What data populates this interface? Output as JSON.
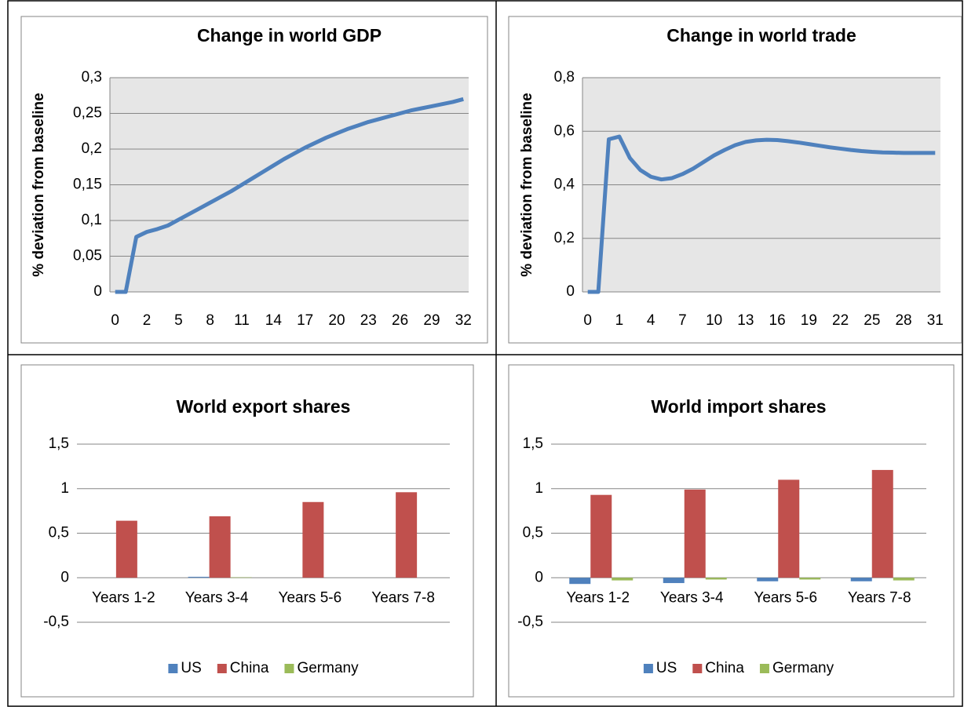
{
  "chart_data": [
    {
      "type": "line",
      "title": "Change in world GDP",
      "y_label": "% deviation from baseline",
      "categories": [
        "0",
        null,
        null,
        "2",
        null,
        null,
        "5",
        null,
        null,
        "8",
        null,
        null,
        "11",
        null,
        null,
        "14",
        null,
        null,
        "17",
        null,
        null,
        "20",
        null,
        null,
        "23",
        null,
        null,
        "26",
        null,
        null,
        "29",
        null,
        null,
        "32"
      ],
      "values": [
        0,
        0,
        0.077,
        0.084,
        0.088,
        0.093,
        0.101,
        0.109,
        0.117,
        0.125,
        0.133,
        0.141,
        0.15,
        0.159,
        0.168,
        0.177,
        0.186,
        0.194,
        0.202,
        0.209,
        0.216,
        0.222,
        0.228,
        0.233,
        0.238,
        0.242,
        0.246,
        0.25,
        0.254,
        0.257,
        0.26,
        0.263,
        0.266,
        0.27
      ],
      "color": "#4f81bd",
      "ylim": [
        0,
        0.3
      ],
      "yticks": [
        0,
        {
          "value": 0.05,
          "label": "0,05"
        },
        {
          "value": 0.1,
          "label": "0,1"
        },
        {
          "value": 0.15,
          "label": "0,15"
        },
        {
          "value": 0.2,
          "label": "0,2"
        },
        {
          "value": 0.25,
          "label": "0,25"
        },
        {
          "value": 0.3,
          "label": "0,3"
        }
      ],
      "grid": true
    },
    {
      "type": "line",
      "title": "Change in world trade",
      "y_label": "% deviation from baseline",
      "categories": [
        "0",
        null,
        null,
        "1",
        null,
        null,
        "4",
        null,
        null,
        "7",
        null,
        null,
        "10",
        null,
        null,
        "13",
        null,
        null,
        "16",
        null,
        null,
        "19",
        null,
        null,
        "22",
        null,
        null,
        "25",
        null,
        null,
        "28",
        null,
        null,
        "31"
      ],
      "values": [
        0,
        0,
        0.57,
        0.58,
        0.5,
        0.455,
        0.43,
        0.42,
        0.425,
        0.44,
        0.46,
        0.485,
        0.51,
        0.53,
        0.548,
        0.56,
        0.566,
        0.568,
        0.567,
        0.563,
        0.558,
        0.552,
        0.546,
        0.54,
        0.535,
        0.53,
        0.526,
        0.523,
        0.521,
        0.52,
        0.519,
        0.519,
        0.519,
        0.519
      ],
      "color": "#4f81bd",
      "ylim": [
        0,
        0.8
      ],
      "yticks": [
        0,
        {
          "value": 0.2,
          "label": "0,2"
        },
        {
          "value": 0.4,
          "label": "0,4"
        },
        {
          "value": 0.6,
          "label": "0,6"
        },
        {
          "value": 0.8,
          "label": "0,8"
        }
      ],
      "grid": true
    },
    {
      "type": "bar",
      "title": "World export shares",
      "categories": [
        "Years 1-2",
        "Years 3-4",
        "Years 5-6",
        "Years 7-8"
      ],
      "series": [
        {
          "name": "US",
          "color": "#4f81bd",
          "values": [
            0,
            0.01,
            0,
            0
          ]
        },
        {
          "name": "China",
          "color": "#c0504d",
          "values": [
            0.64,
            0.69,
            0.85,
            0.96
          ]
        },
        {
          "name": "Germany",
          "color": "#9bbb59",
          "values": [
            0,
            0.005,
            0,
            0
          ]
        }
      ],
      "ylim": [
        -0.5,
        1.5
      ],
      "yticks": [
        {
          "value": -0.5,
          "label": "-0,5"
        },
        0,
        {
          "value": 0.5,
          "label": "0,5"
        },
        1,
        {
          "value": 1.5,
          "label": "1,5"
        }
      ],
      "grid": true,
      "legend": "bottom"
    },
    {
      "type": "bar",
      "title": "World import shares",
      "categories": [
        "Years 1-2",
        "Years 3-4",
        "Years 5-6",
        "Years 7-8"
      ],
      "series": [
        {
          "name": "US",
          "color": "#4f81bd",
          "values": [
            -0.07,
            -0.06,
            -0.04,
            -0.04
          ]
        },
        {
          "name": "China",
          "color": "#c0504d",
          "values": [
            0.93,
            0.99,
            1.1,
            1.21
          ]
        },
        {
          "name": "Germany",
          "color": "#9bbb59",
          "values": [
            -0.03,
            -0.02,
            -0.02,
            -0.03
          ]
        }
      ],
      "ylim": [
        -0.5,
        1.5
      ],
      "yticks": [
        {
          "value": -0.5,
          "label": "-0,5"
        },
        0,
        {
          "value": 0.5,
          "label": "0,5"
        },
        1,
        {
          "value": 1.5,
          "label": "1,5"
        }
      ],
      "grid": true,
      "legend": "bottom"
    }
  ]
}
